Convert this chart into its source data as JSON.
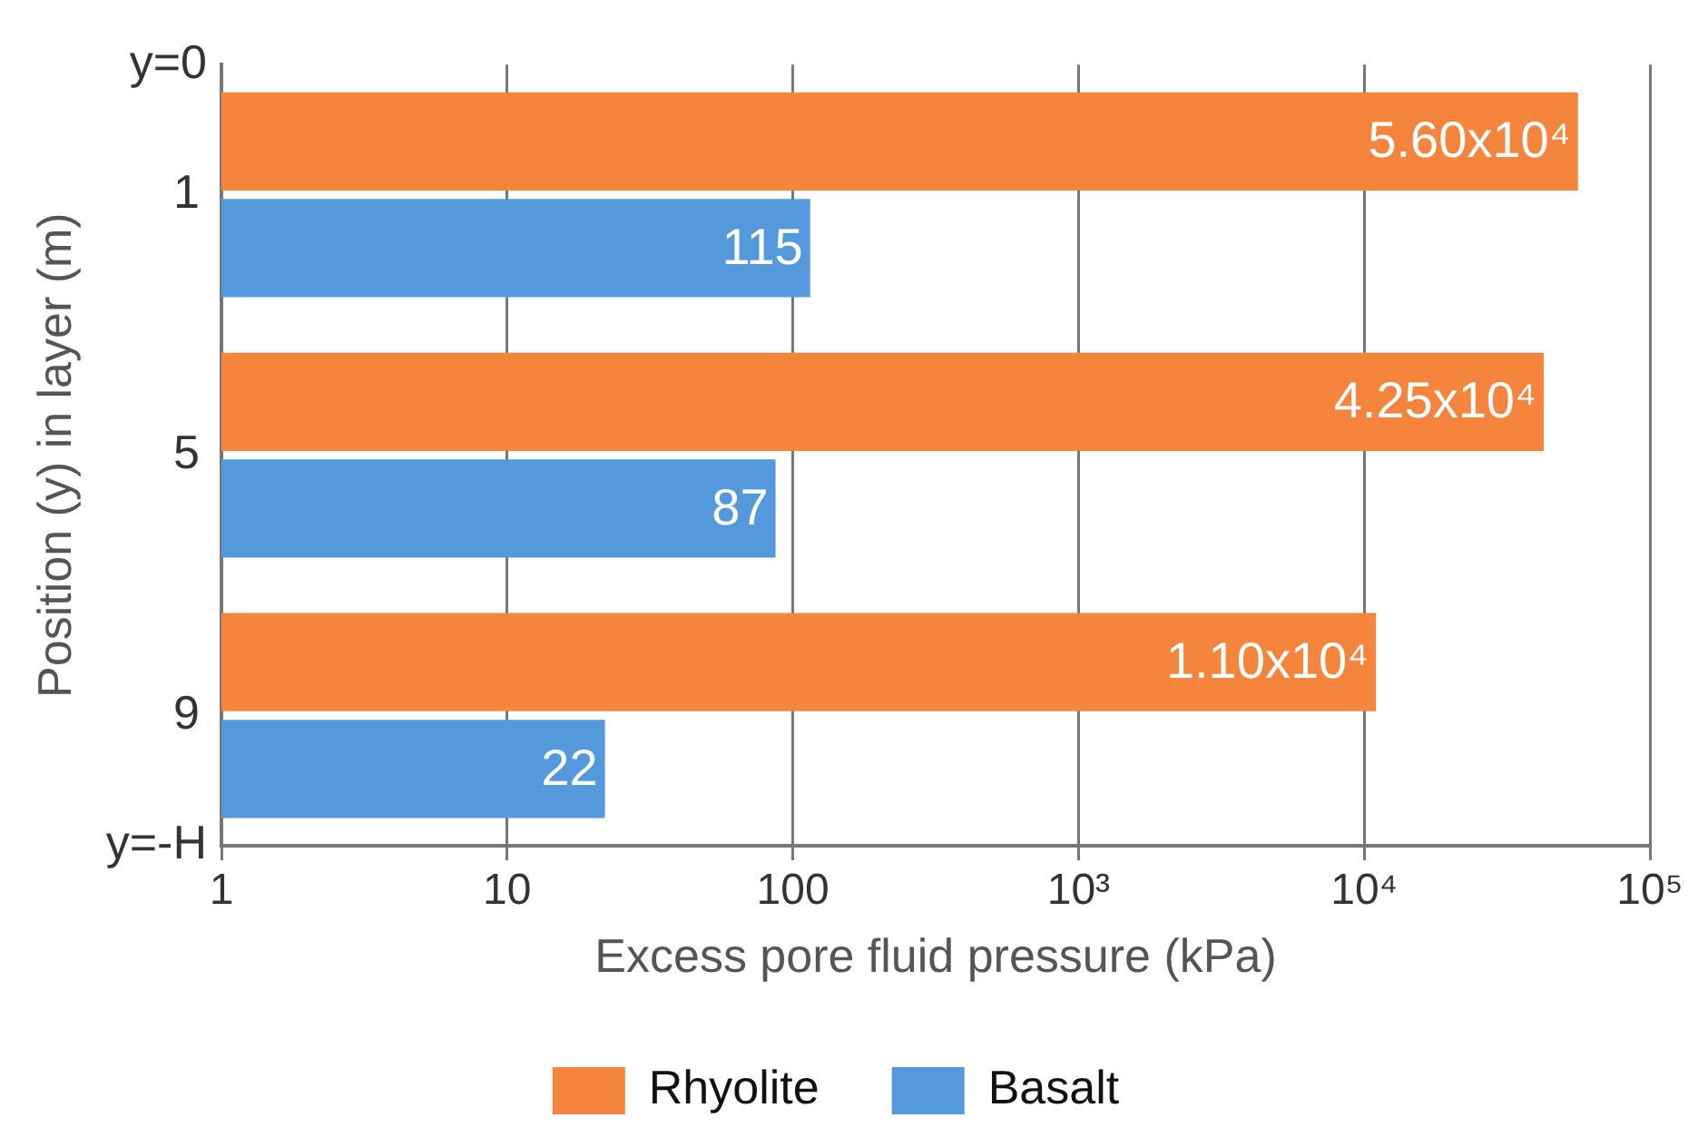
{
  "chart_data": {
    "type": "bar",
    "orientation": "horizontal",
    "xlabel": "Excess pore fluid pressure (kPa)",
    "ylabel": "Position (y) in layer (m)",
    "categories": [
      "1",
      "5",
      "9"
    ],
    "series": [
      {
        "name": "Rhyolite",
        "color": "#f5843c",
        "values": [
          56000,
          42500,
          11000
        ],
        "value_labels": [
          "5.60x10⁴",
          "4.25x10⁴",
          "1.10x10⁴"
        ]
      },
      {
        "name": "Basalt",
        "color": "#5499dc",
        "values": [
          115,
          87,
          22
        ],
        "value_labels": [
          "115",
          "87",
          "22"
        ]
      }
    ],
    "log": "x",
    "xlim": [
      1,
      100000
    ],
    "xticks": [
      1,
      10,
      100,
      {
        "value": 1000,
        "label": "10³"
      },
      {
        "value": 10000,
        "label": "10⁴"
      },
      {
        "value": 100000,
        "label": "10⁵"
      }
    ],
    "grid": "x",
    "legend": "bottom",
    "annotations": [
      "y=0",
      "y=-H"
    ]
  }
}
